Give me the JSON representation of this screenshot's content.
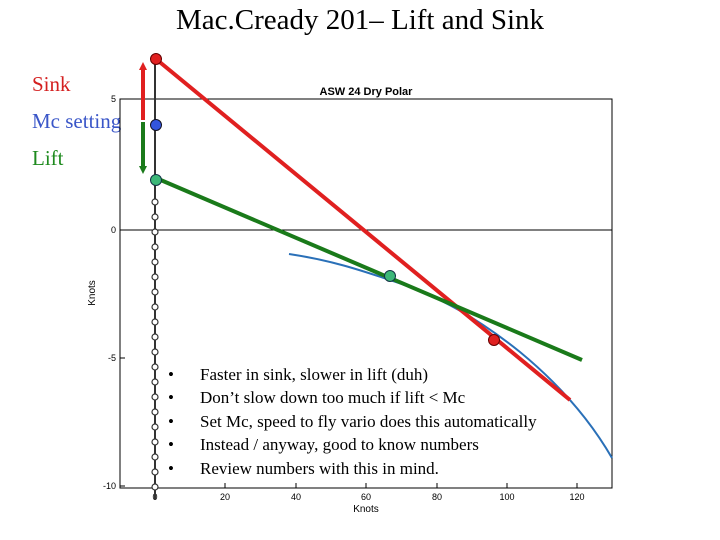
{
  "slide": {
    "title": "Mac.Cready 201– Lift and Sink",
    "labels": {
      "sink": "Sink",
      "mc_setting": "Mc setting",
      "lift": "Lift"
    },
    "bullets": [
      "Faster in sink, slower in lift (duh)",
      "Don’t slow down too much if lift < Mc",
      "Set Mc, speed to fly vario does this automatically",
      "Instead / anyway, good to know numbers",
      "Review numbers with this in mind."
    ],
    "bullet_glyph": "•"
  },
  "chart": {
    "title": "ASW 24 Dry Polar",
    "xlabel": "Knots",
    "ylabel": "Knots",
    "xticks": [
      "0",
      "20",
      "40",
      "60",
      "80",
      "100",
      "120"
    ],
    "yticks": [
      "5",
      "0",
      "-5",
      "-10"
    ],
    "colors": {
      "sink": "#e02020",
      "mc": "#3355dd",
      "lift": "#1a7a1a",
      "polar": "#2a70b8",
      "lift_dot": "#3cb878"
    }
  }
}
